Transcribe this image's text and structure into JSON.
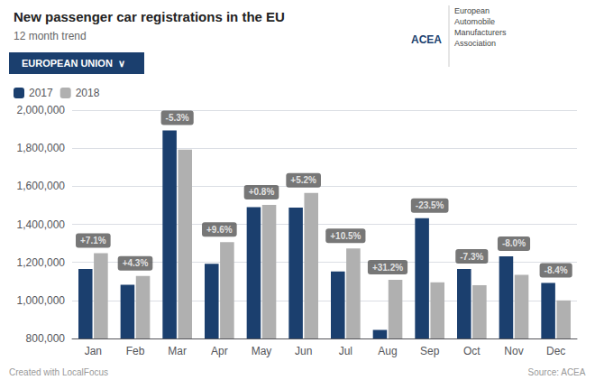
{
  "chart_data": {
    "type": "bar",
    "title": "New passenger car registrations in the EU",
    "subtitle": "12 month trend",
    "categories": [
      "Jan",
      "Feb",
      "Mar",
      "Apr",
      "May",
      "Jun",
      "Jul",
      "Aug",
      "Sep",
      "Oct",
      "Nov",
      "Dec"
    ],
    "series": [
      {
        "name": "2017",
        "color": "#1b3f6e",
        "values": [
          1165000,
          1082000,
          1893000,
          1192000,
          1490000,
          1488000,
          1152000,
          845000,
          1432000,
          1165000,
          1232000,
          1092000
        ]
      },
      {
        "name": "2018",
        "color": "#b0b0b0",
        "values": [
          1248000,
          1129000,
          1793000,
          1306000,
          1502000,
          1565000,
          1273000,
          1108000,
          1095000,
          1080000,
          1134000,
          1000000
        ]
      }
    ],
    "ylim": [
      800000,
      2000000
    ],
    "yticks": [
      {
        "value": 800000,
        "label": "800,000"
      },
      {
        "value": 1000000,
        "label": "1,000,000"
      },
      {
        "value": 1200000,
        "label": "1,200,000"
      },
      {
        "value": 1400000,
        "label": "1,400,000"
      },
      {
        "value": 1600000,
        "label": "1,600,000"
      },
      {
        "value": 1800000,
        "label": "1,800,000"
      },
      {
        "value": 2000000,
        "label": "2,000,000"
      }
    ],
    "grid": true,
    "legend": "upper left",
    "annotations": [
      {
        "x": "Jan",
        "text": "+7.1%"
      },
      {
        "x": "Feb",
        "text": "+4.3%"
      },
      {
        "x": "Mar",
        "text": "-5.3%"
      },
      {
        "x": "Apr",
        "text": "+9.6%"
      },
      {
        "x": "May",
        "text": "+0.8%"
      },
      {
        "x": "Jun",
        "text": "+5.2%"
      },
      {
        "x": "Jul",
        "text": "+10.5%"
      },
      {
        "x": "Aug",
        "text": "+31.2%"
      },
      {
        "x": "Sep",
        "text": "-23.5%"
      },
      {
        "x": "Oct",
        "text": "-7.3%"
      },
      {
        "x": "Nov",
        "text": "-8.0%"
      },
      {
        "x": "Dec",
        "text": "-8.4%"
      },
      {
        "text": "EUROPEAN UNION  ∨"
      },
      {
        "text": "ACEA"
      },
      {
        "text": "European\nAutomobile\nManufacturers\nAssociation"
      },
      {
        "text": "Created with LocalFocus"
      },
      {
        "text": "Source: ACEA"
      }
    ]
  }
}
